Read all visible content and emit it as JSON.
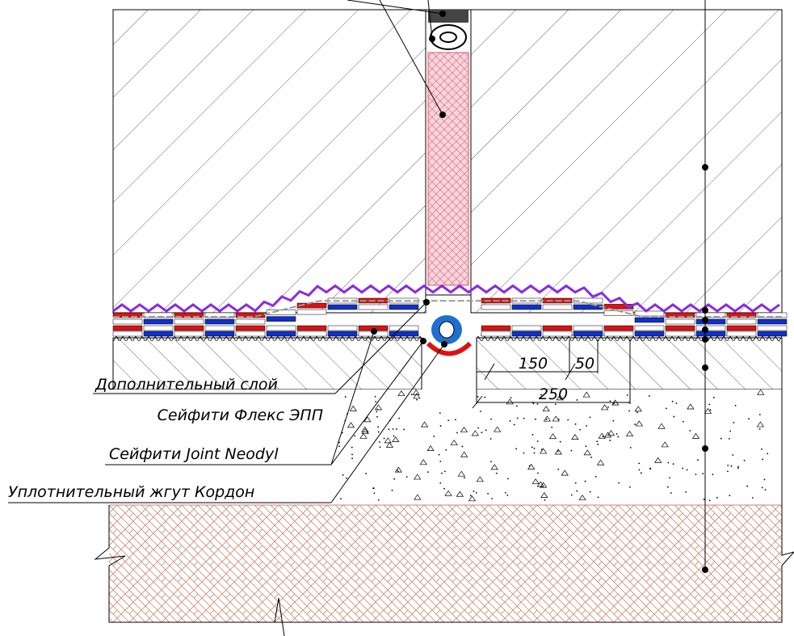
{
  "labels": [
    "Дополнительный слой",
    "Сейфити Флекс ЭПП",
    "Сейфити Joint Neodyl",
    "Уплотнительный жгут Кордон"
  ],
  "dimensions": [
    150,
    50,
    250
  ]
}
